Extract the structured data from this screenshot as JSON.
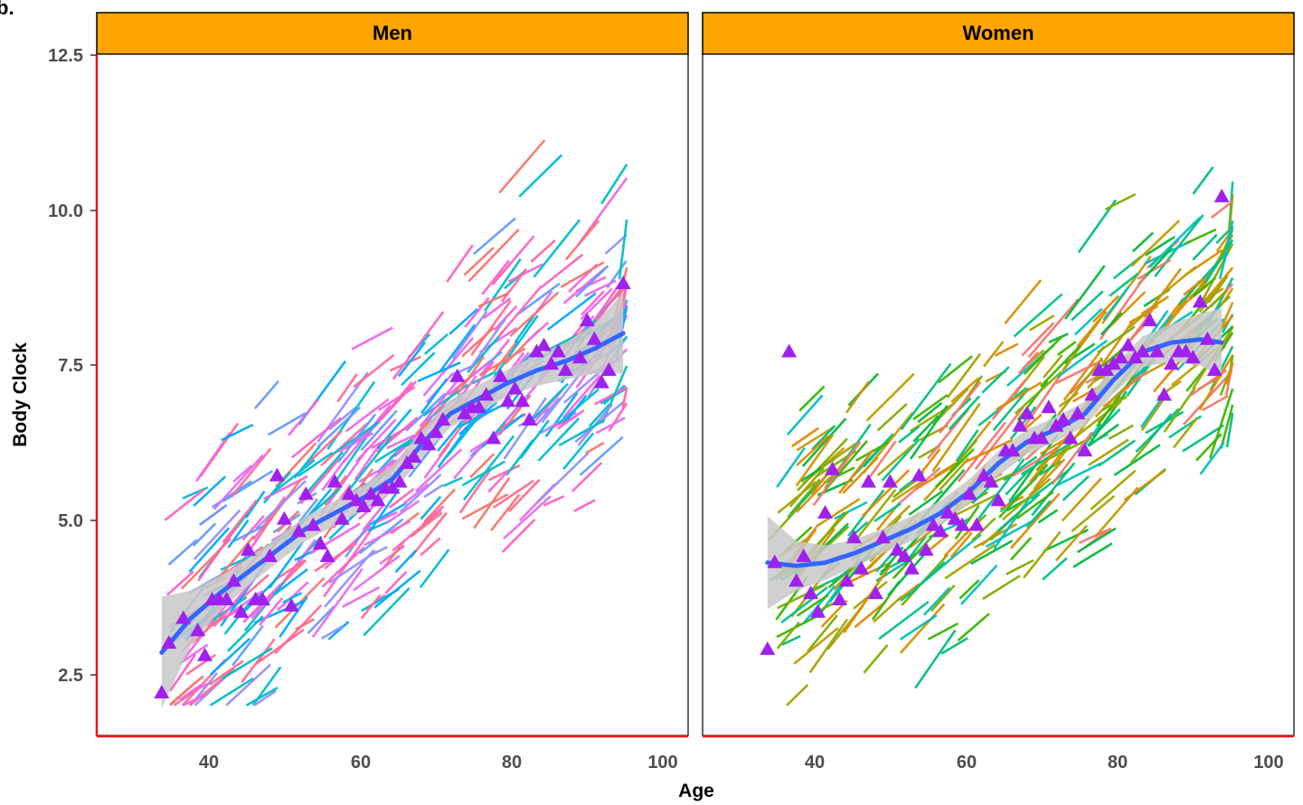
{
  "figure_label": "b.",
  "colors": {
    "strip_fill": "#FFA500",
    "axis_line": "#E41A1C",
    "smooth_line": "#3366FF",
    "ribbon": "#C8C8C8",
    "marker": "#A020F0",
    "men_palette": [
      "#F8766D",
      "#F564E3",
      "#FF61C3",
      "#E76BF3",
      "#9590FF",
      "#619CFF",
      "#00A9FF",
      "#00BCD8",
      "#00BFC4",
      "#FF6C91"
    ],
    "women_palette": [
      "#00BA38",
      "#7CAE00",
      "#A3A500",
      "#C49A00",
      "#00C08B",
      "#00BF7D",
      "#39B600",
      "#D89000",
      "#E58700",
      "#F8766D",
      "#00BFC4"
    ]
  },
  "chart_data": [
    {
      "type": "scatter",
      "panel": "Men",
      "xlabel": "Age",
      "ylabel": "Body Clock",
      "xlim": [
        25,
        107
      ],
      "ylim": [
        1.5,
        12.5
      ],
      "x_ticks": [
        "40",
        "60",
        "80",
        "100"
      ],
      "y_ticks": [
        "2.5",
        "5.0",
        "7.5",
        "10.0",
        "12.5"
      ],
      "markers": [
        [
          34,
          2.2
        ],
        [
          35,
          3.0
        ],
        [
          37,
          3.4
        ],
        [
          39,
          3.2
        ],
        [
          40,
          2.8
        ],
        [
          41,
          3.7
        ],
        [
          42,
          3.7
        ],
        [
          43,
          3.7
        ],
        [
          44,
          4.0
        ],
        [
          45,
          3.5
        ],
        [
          46,
          4.5
        ],
        [
          47,
          3.7
        ],
        [
          48,
          3.7
        ],
        [
          49,
          4.4
        ],
        [
          50,
          5.7
        ],
        [
          51,
          5.0
        ],
        [
          52,
          3.6
        ],
        [
          53,
          4.8
        ],
        [
          54,
          5.4
        ],
        [
          55,
          4.9
        ],
        [
          56,
          4.6
        ],
        [
          57,
          4.4
        ],
        [
          58,
          5.6
        ],
        [
          59,
          5.0
        ],
        [
          60,
          5.4
        ],
        [
          61,
          5.3
        ],
        [
          62,
          5.2
        ],
        [
          63,
          5.4
        ],
        [
          64,
          5.3
        ],
        [
          65,
          5.5
        ],
        [
          66,
          5.5
        ],
        [
          67,
          5.6
        ],
        [
          68,
          5.9
        ],
        [
          69,
          6.0
        ],
        [
          70,
          6.3
        ],
        [
          71,
          6.2
        ],
        [
          72,
          6.4
        ],
        [
          73,
          6.6
        ],
        [
          75,
          7.3
        ],
        [
          76,
          6.7
        ],
        [
          77,
          6.8
        ],
        [
          78,
          6.8
        ],
        [
          79,
          7.0
        ],
        [
          80,
          6.3
        ],
        [
          81,
          7.3
        ],
        [
          82,
          6.9
        ],
        [
          83,
          7.1
        ],
        [
          84,
          6.9
        ],
        [
          85,
          6.6
        ],
        [
          86,
          7.7
        ],
        [
          87,
          7.8
        ],
        [
          88,
          7.5
        ],
        [
          89,
          7.7
        ],
        [
          90,
          7.4
        ],
        [
          92,
          7.6
        ],
        [
          93,
          8.2
        ],
        [
          94,
          7.9
        ],
        [
          95,
          7.2
        ],
        [
          96,
          7.4
        ],
        [
          98,
          8.8
        ]
      ],
      "smooth": [
        [
          34,
          2.85
        ],
        [
          38,
          3.4
        ],
        [
          42,
          3.8
        ],
        [
          46,
          4.15
        ],
        [
          50,
          4.5
        ],
        [
          54,
          4.85
        ],
        [
          58,
          5.1
        ],
        [
          62,
          5.35
        ],
        [
          66,
          5.65
        ],
        [
          70,
          6.2
        ],
        [
          74,
          6.7
        ],
        [
          78,
          6.95
        ],
        [
          82,
          7.2
        ],
        [
          86,
          7.4
        ],
        [
          90,
          7.55
        ],
        [
          94,
          7.75
        ],
        [
          98,
          8.0
        ]
      ],
      "ribbon_halfwidth": [
        [
          34,
          0.9
        ],
        [
          38,
          0.45
        ],
        [
          42,
          0.28
        ],
        [
          46,
          0.22
        ],
        [
          50,
          0.2
        ],
        [
          54,
          0.2
        ],
        [
          58,
          0.2
        ],
        [
          62,
          0.2
        ],
        [
          66,
          0.22
        ],
        [
          70,
          0.22
        ],
        [
          74,
          0.22
        ],
        [
          78,
          0.22
        ],
        [
          82,
          0.22
        ],
        [
          86,
          0.25
        ],
        [
          90,
          0.3
        ],
        [
          94,
          0.4
        ],
        [
          98,
          0.65
        ]
      ]
    },
    {
      "type": "scatter",
      "panel": "Women",
      "xlabel": "Age",
      "ylabel": "Body Clock",
      "xlim": [
        25,
        107
      ],
      "ylim": [
        1.5,
        12.5
      ],
      "x_ticks": [
        "40",
        "60",
        "80",
        "100"
      ],
      "y_ticks": [
        "2.5",
        "5.0",
        "7.5",
        "10.0",
        "12.5"
      ],
      "markers": [
        [
          34,
          2.9
        ],
        [
          35,
          4.3
        ],
        [
          37,
          7.7
        ],
        [
          38,
          4.0
        ],
        [
          39,
          4.4
        ],
        [
          40,
          3.8
        ],
        [
          41,
          3.5
        ],
        [
          42,
          5.1
        ],
        [
          43,
          5.8
        ],
        [
          44,
          3.7
        ],
        [
          45,
          4.0
        ],
        [
          46,
          4.7
        ],
        [
          47,
          4.2
        ],
        [
          48,
          5.6
        ],
        [
          49,
          3.8
        ],
        [
          50,
          4.7
        ],
        [
          51,
          5.6
        ],
        [
          52,
          4.5
        ],
        [
          53,
          4.4
        ],
        [
          54,
          4.2
        ],
        [
          55,
          5.7
        ],
        [
          56,
          4.5
        ],
        [
          57,
          4.9
        ],
        [
          58,
          4.8
        ],
        [
          59,
          5.1
        ],
        [
          60,
          5.0
        ],
        [
          61,
          4.9
        ],
        [
          62,
          5.4
        ],
        [
          63,
          4.9
        ],
        [
          64,
          5.7
        ],
        [
          65,
          5.6
        ],
        [
          66,
          5.3
        ],
        [
          67,
          6.1
        ],
        [
          68,
          6.1
        ],
        [
          69,
          6.5
        ],
        [
          70,
          6.7
        ],
        [
          71,
          6.3
        ],
        [
          72,
          6.3
        ],
        [
          73,
          6.8
        ],
        [
          74,
          6.5
        ],
        [
          75,
          6.6
        ],
        [
          76,
          6.3
        ],
        [
          77,
          6.7
        ],
        [
          78,
          6.1
        ],
        [
          79,
          7.0
        ],
        [
          80,
          7.4
        ],
        [
          81,
          7.4
        ],
        [
          82,
          7.5
        ],
        [
          83,
          7.6
        ],
        [
          84,
          7.8
        ],
        [
          85,
          7.6
        ],
        [
          86,
          7.7
        ],
        [
          87,
          8.2
        ],
        [
          88,
          7.7
        ],
        [
          89,
          7.0
        ],
        [
          90,
          7.5
        ],
        [
          91,
          7.7
        ],
        [
          92,
          7.7
        ],
        [
          93,
          7.6
        ],
        [
          94,
          8.5
        ],
        [
          95,
          7.9
        ],
        [
          96,
          7.4
        ],
        [
          97,
          10.2
        ]
      ],
      "smooth": [
        [
          34,
          4.3
        ],
        [
          38,
          4.25
        ],
        [
          42,
          4.3
        ],
        [
          46,
          4.45
        ],
        [
          50,
          4.65
        ],
        [
          54,
          4.85
        ],
        [
          58,
          5.1
        ],
        [
          62,
          5.45
        ],
        [
          66,
          5.9
        ],
        [
          70,
          6.25
        ],
        [
          74,
          6.45
        ],
        [
          78,
          6.7
        ],
        [
          82,
          7.25
        ],
        [
          86,
          7.7
        ],
        [
          90,
          7.85
        ],
        [
          94,
          7.9
        ],
        [
          97,
          7.85
        ]
      ],
      "ribbon_halfwidth": [
        [
          34,
          0.75
        ],
        [
          38,
          0.4
        ],
        [
          42,
          0.28
        ],
        [
          46,
          0.22
        ],
        [
          50,
          0.2
        ],
        [
          54,
          0.2
        ],
        [
          58,
          0.2
        ],
        [
          62,
          0.2
        ],
        [
          66,
          0.2
        ],
        [
          70,
          0.2
        ],
        [
          74,
          0.2
        ],
        [
          78,
          0.2
        ],
        [
          82,
          0.22
        ],
        [
          86,
          0.25
        ],
        [
          90,
          0.3
        ],
        [
          94,
          0.42
        ],
        [
          97,
          0.55
        ]
      ]
    }
  ]
}
